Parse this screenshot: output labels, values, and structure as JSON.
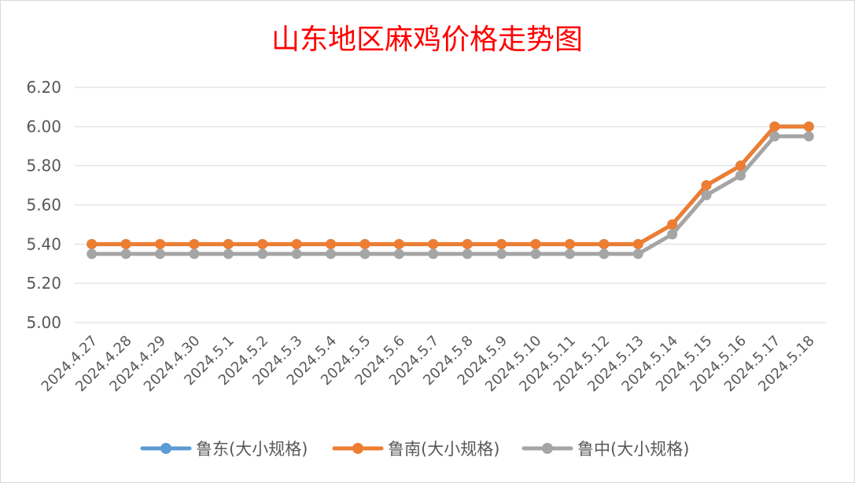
{
  "chart_data": {
    "type": "line",
    "title": "山东地区麻鸡价格走势图",
    "xlabel": "",
    "ylabel": "",
    "ylim": [
      5.0,
      6.2
    ],
    "yticks": [
      "5.00",
      "5.20",
      "5.40",
      "5.60",
      "5.80",
      "6.00",
      "6.20"
    ],
    "grid": true,
    "legend_position": "bottom",
    "categories": [
      "2024.4.27",
      "2024.4.28",
      "2024.4.29",
      "2024.4.30",
      "2024.5.1",
      "2024.5.2",
      "2024.5.3",
      "2024.5.4",
      "2024.5.5",
      "2024.5.6",
      "2024.5.7",
      "2024.5.8",
      "2024.5.9",
      "2024.5.10",
      "2024.5.11",
      "2024.5.12",
      "2024.5.13",
      "2024.5.14",
      "2024.5.15",
      "2024.5.16",
      "2024.5.17",
      "2024.5.18"
    ],
    "series": [
      {
        "name": "鲁东(大小规格)",
        "color": "#5b9bd5",
        "values": [
          5.4,
          5.4,
          5.4,
          5.4,
          5.4,
          5.4,
          5.4,
          5.4,
          5.4,
          5.4,
          5.4,
          5.4,
          5.4,
          5.4,
          5.4,
          5.4,
          5.4,
          5.5,
          5.7,
          5.8,
          6.0,
          6.0
        ]
      },
      {
        "name": "鲁南(大小规格)",
        "color": "#ed7d31",
        "values": [
          5.4,
          5.4,
          5.4,
          5.4,
          5.4,
          5.4,
          5.4,
          5.4,
          5.4,
          5.4,
          5.4,
          5.4,
          5.4,
          5.4,
          5.4,
          5.4,
          5.4,
          5.5,
          5.7,
          5.8,
          6.0,
          6.0
        ]
      },
      {
        "name": "鲁中(大小规格)",
        "color": "#a5a5a5",
        "values": [
          5.35,
          5.35,
          5.35,
          5.35,
          5.35,
          5.35,
          5.35,
          5.35,
          5.35,
          5.35,
          5.35,
          5.35,
          5.35,
          5.35,
          5.35,
          5.35,
          5.35,
          5.45,
          5.65,
          5.75,
          5.95,
          5.95
        ]
      }
    ]
  }
}
